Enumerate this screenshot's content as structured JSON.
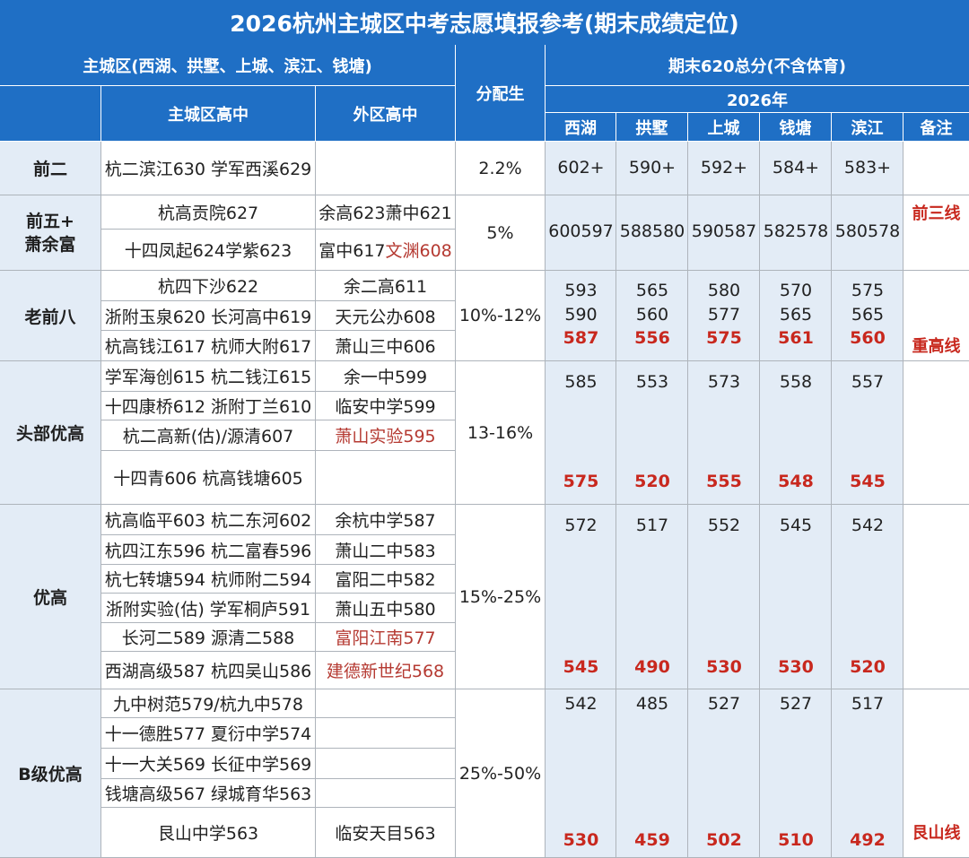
{
  "title": "2026杭州主城区中考志愿填报参考(期末成绩定位)",
  "header": {
    "district_group": "主城区(西湖、拱墅、上城、滨江、钱塘)",
    "main_high": "主城区高中",
    "outer_high": "外区高中",
    "allocation": "分配生",
    "score_group": "期末620总分(不含体育)",
    "year": "2026年",
    "districts": [
      "西湖",
      "拱墅",
      "上城",
      "钱塘",
      "滨江"
    ],
    "remark": "备注"
  },
  "tiers": [
    {
      "name": "前二",
      "allocation": "2.2%",
      "main": [
        "杭二滨江630 学军西溪629"
      ],
      "outer": [
        ""
      ],
      "scores": [
        [
          "602+"
        ],
        [
          "590+"
        ],
        [
          "592+"
        ],
        [
          "584+"
        ],
        [
          "583+"
        ]
      ],
      "note": ""
    },
    {
      "name_lines": [
        "前五+",
        "萧余富"
      ],
      "allocation": "5%",
      "main": [
        "杭高贡院627",
        "十四凤起624学紫623"
      ],
      "outer_rich": [
        [
          {
            "t": "余高623萧中621",
            "red": false
          }
        ],
        [
          {
            "t": "富中617",
            "red": false
          },
          {
            "t": "文渊608",
            "red": true
          }
        ]
      ],
      "scores_line": [
        "600597",
        "588580",
        "590587",
        "582578",
        "580578"
      ],
      "note": "前三线"
    },
    {
      "name": "老前八",
      "allocation": "10%-12%",
      "main": [
        "杭四下沙622",
        "浙附玉泉620 长河高中619",
        "杭高钱江617 杭师大附617"
      ],
      "outer": [
        "余二高611",
        "天元公办608",
        "萧山三中606"
      ],
      "scores": [
        [
          "593",
          "590",
          "587"
        ],
        [
          "565",
          "560",
          "556"
        ],
        [
          "580",
          "577",
          "575"
        ],
        [
          "570",
          "565",
          "561"
        ],
        [
          "575",
          "565",
          "560"
        ]
      ],
      "note": "重高线"
    },
    {
      "name": "头部优高",
      "allocation": "13-16%",
      "main": [
        "学军海创615 杭二钱江615",
        "十四康桥612 浙附丁兰610",
        "杭二高新(估)/源清607",
        "十四青606 杭高钱塘605"
      ],
      "outer": [
        "余一中599",
        "临安中学599",
        "萧山实验595",
        ""
      ],
      "outer_red": [
        false,
        false,
        true,
        false
      ],
      "scores": [
        [
          "585",
          "575"
        ],
        [
          "553",
          "520"
        ],
        [
          "573",
          "555"
        ],
        [
          "558",
          "548"
        ],
        [
          "557",
          "545"
        ]
      ],
      "note": ""
    },
    {
      "name": "优高",
      "allocation": "15%-25%",
      "main": [
        "杭高临平603 杭二东河602",
        "杭四江东596 杭二富春596",
        "杭七转塘594 杭师附二594",
        "浙附实验(估) 学军桐庐591",
        "长河二589 源清二588",
        "西湖高级587 杭四吴山586"
      ],
      "outer": [
        "余杭中学587",
        "萧山二中583",
        "富阳二中582",
        "萧山五中580",
        "富阳江南577",
        "建德新世纪568"
      ],
      "outer_red": [
        false,
        false,
        false,
        false,
        true,
        true
      ],
      "scores": [
        [
          "572",
          "545"
        ],
        [
          "517",
          "490"
        ],
        [
          "552",
          "530"
        ],
        [
          "545",
          "530"
        ],
        [
          "542",
          "520"
        ]
      ],
      "note": ""
    },
    {
      "name": "B级优高",
      "allocation": "25%-50%",
      "main": [
        "九中树范579/杭九中578",
        "十一德胜577 夏衍中学574",
        "十一大关569 长征中学569",
        "钱塘高级567 绿城育华563",
        "艮山中学563"
      ],
      "outer": [
        "",
        "",
        "",
        "",
        "临安天目563"
      ],
      "scores": [
        [
          "542",
          "530"
        ],
        [
          "485",
          "459"
        ],
        [
          "527",
          "502"
        ],
        [
          "527",
          "510"
        ],
        [
          "517",
          "492"
        ]
      ],
      "note": "艮山线"
    }
  ],
  "colors": {
    "header_blue": "#1f6fc5",
    "tier_bg": "#e3ecf6",
    "highlight_red": "#c8281e",
    "school_red": "#b53a32"
  }
}
